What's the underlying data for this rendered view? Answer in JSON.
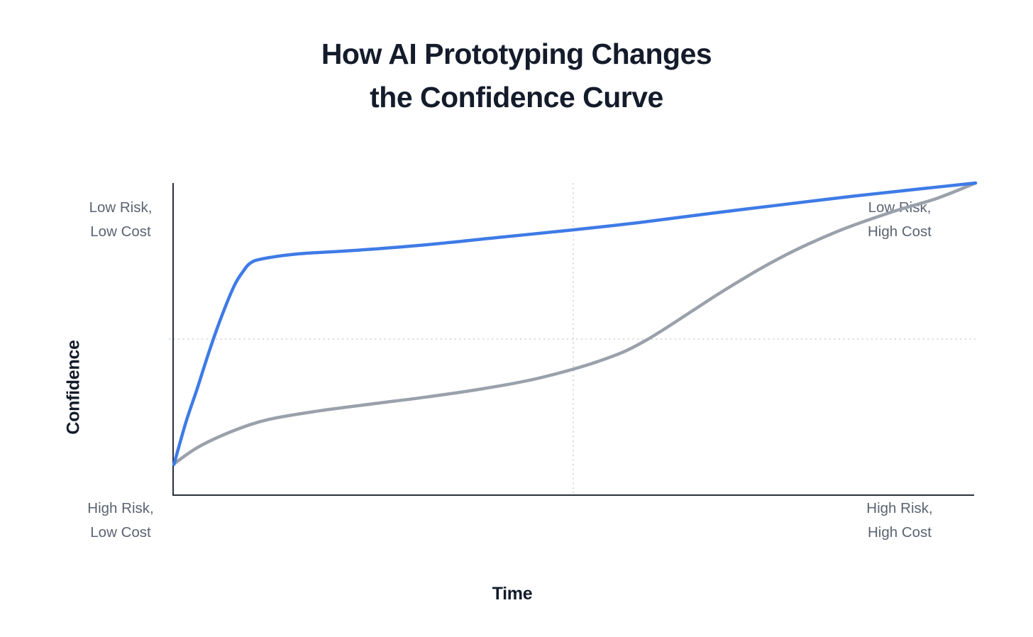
{
  "title": {
    "line1": "How AI Prototyping Changes",
    "line2": "the Confidence Curve"
  },
  "axes": {
    "x_label": "Time",
    "y_label": "Confidence"
  },
  "corner_labels": {
    "top_left": {
      "line1": "Low Risk,",
      "line2": "Low Cost"
    },
    "top_right": {
      "line1": "Low Risk,",
      "line2": "High Cost"
    },
    "bottom_left": {
      "line1": "High Risk,",
      "line2": "Low Cost"
    },
    "bottom_right": {
      "line1": "High Risk,",
      "line2": "High Cost"
    }
  },
  "colors": {
    "blue_curve": "#3e7be6",
    "gray_curve": "#9aa1ab",
    "axis": "#2a303a",
    "gridline": "#d9dadc",
    "title_text": "#141c2b",
    "corner_label_text": "#5b6472"
  },
  "chart_data": {
    "type": "line",
    "title": "How AI Prototyping Changes the Confidence Curve",
    "xlabel": "Time",
    "ylabel": "Confidence",
    "x_range": [
      0,
      100
    ],
    "y_range": [
      0,
      100
    ],
    "legend": "none",
    "grid": "dotted crosshair gridlines at x=50 and y=50",
    "axis_style": "solid left and bottom axes only, no tick labels",
    "annotations": [
      "Low Risk, Low Cost (outside top-left)",
      "Low Risk, High Cost (outside top-right)",
      "High Risk, Low Cost (outside bottom-left)",
      "High Risk, High Cost (outside bottom-right)"
    ],
    "series": [
      {
        "name": "blue_curve_ai_prototyping",
        "color": "#3e7be6",
        "stroke_width": 4.5,
        "shape": "steep early rise then long shallow plateau rising to top-right",
        "points": [
          [
            0.1,
            9.8
          ],
          [
            1.6,
            23.4
          ],
          [
            3.0,
            34.1
          ],
          [
            4.5,
            46.1
          ],
          [
            6.0,
            57.0
          ],
          [
            7.6,
            67.0
          ],
          [
            8.7,
            71.6
          ],
          [
            9.6,
            74.3
          ],
          [
            11.1,
            75.7
          ],
          [
            15.6,
            77.3
          ],
          [
            22.6,
            78.4
          ],
          [
            31.5,
            80.2
          ],
          [
            40.3,
            82.5
          ],
          [
            49.9,
            85.0
          ],
          [
            58.0,
            87.3
          ],
          [
            66.8,
            90.2
          ],
          [
            75.7,
            93.0
          ],
          [
            84.5,
            95.7
          ],
          [
            93.4,
            98.2
          ],
          [
            100,
            100
          ]
        ]
      },
      {
        "name": "gray_curve_traditional",
        "color": "#9aa1ab",
        "stroke_width": 4.5,
        "shape": "slow early rise, long low plateau, late S-shaped climb to top-right",
        "points": [
          [
            0.1,
            10.0
          ],
          [
            3.2,
            15.5
          ],
          [
            7.6,
            20.7
          ],
          [
            12.0,
            24.3
          ],
          [
            18.2,
            27.0
          ],
          [
            24.4,
            29.1
          ],
          [
            31.5,
            31.4
          ],
          [
            38.6,
            34.1
          ],
          [
            45.6,
            37.5
          ],
          [
            53.6,
            43.4
          ],
          [
            59.2,
            50.0
          ],
          [
            68.6,
            65.5
          ],
          [
            75.7,
            76.1
          ],
          [
            82.8,
            84.5
          ],
          [
            89.8,
            90.9
          ],
          [
            95.1,
            95.0
          ],
          [
            100,
            100
          ]
        ]
      }
    ]
  }
}
